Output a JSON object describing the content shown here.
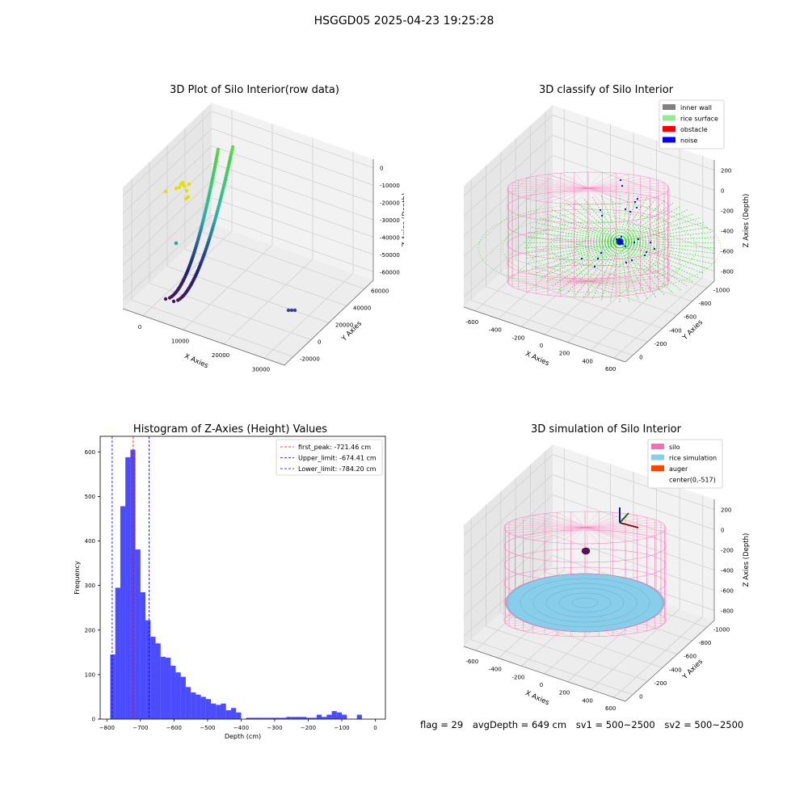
{
  "suptitle": "HSGGD05 2025-04-23 19:25:28",
  "footer": {
    "flag": "flag = 29",
    "avg": "avgDepth = 649 cm",
    "sv1": "sv1 = 500~2500",
    "sv2": "sv2 = 500~2500"
  },
  "colors": {
    "wall": "#808080",
    "rice": "#90ee90",
    "obstacle": "#ff0000",
    "noise": "#0000ff",
    "silo": "#ff69b4",
    "rice_sim": "#87ceeb",
    "auger": "#ff4500",
    "hist": "#0000ff"
  },
  "chart_data": [
    {
      "type": "scatter",
      "title": "3D Plot of Silo Interior(row data)",
      "xlabel": "X Axies",
      "ylabel": "Y Axies",
      "zlabel": "Z Axies (Depth)",
      "x_ticks": [
        "0",
        "10000",
        "20000",
        "30000"
      ],
      "y_ticks": [
        "-20000",
        "0",
        "20000",
        "40000",
        "60000"
      ],
      "z_ticks": [
        "0",
        "-10000",
        "-20000",
        "-30000",
        "-40000",
        "-50000",
        "-60000"
      ],
      "xlim": [
        -5000,
        35000
      ],
      "ylim": [
        -25000,
        65000
      ],
      "zlim": [
        -65000,
        0
      ]
    },
    {
      "type": "scatter",
      "title": "3D classify of Silo Interior",
      "xlabel": "X Axies",
      "ylabel": "Y Axies",
      "zlabel": "Z Axies (Depth)",
      "x_ticks": [
        "-600",
        "-400",
        "-200",
        "0",
        "200",
        "400",
        "600"
      ],
      "y_ticks": [
        "0",
        "-200",
        "-400",
        "-600",
        "-800",
        "-1000"
      ],
      "z_ticks": [
        "200",
        "0",
        "-200",
        "-400",
        "-600",
        "-800"
      ],
      "legend": [
        "inner wall",
        "rice surface",
        "obstacle",
        "noise"
      ],
      "legend_loc": "upper right"
    },
    {
      "type": "bar",
      "title": "Histogram of Z-Axies (Height) Values",
      "xlabel": "Depth (cm)",
      "ylabel": "Frequency",
      "xlim": [
        -820,
        30
      ],
      "ylim": [
        0,
        635
      ],
      "x_ticks": [
        -800,
        -700,
        -600,
        -500,
        -400,
        -300,
        -200,
        -100,
        0
      ],
      "y_ticks": [
        0,
        100,
        200,
        300,
        400,
        500,
        600
      ],
      "bin_start": -790,
      "bin_width": 15,
      "values": [
        145,
        295,
        478,
        588,
        605,
        381,
        285,
        222,
        185,
        170,
        140,
        138,
        120,
        105,
        95,
        72,
        60,
        55,
        50,
        45,
        35,
        32,
        35,
        20,
        25,
        15,
        0,
        3,
        3,
        3,
        3,
        3,
        3,
        3,
        3,
        5,
        5,
        5,
        5,
        3,
        3,
        10,
        5,
        10,
        18,
        15,
        10,
        0,
        0,
        10
      ],
      "lines": [
        {
          "label": "first_peak: -721.46 cm",
          "x": -721.46,
          "color": "#ff0000"
        },
        {
          "label": "Upper_limit: -674.41 cm",
          "x": -674.41,
          "color": "#0000ff"
        },
        {
          "label": "Lower_limit: -784.20 cm",
          "x": -784.2,
          "color": "#0000ff"
        }
      ],
      "legend_loc": "upper right"
    },
    {
      "type": "scatter",
      "title": "3D simulation of Silo Interior",
      "xlabel": "X Axies",
      "ylabel": "Y Axies",
      "zlabel": "Z Axies (Depth)",
      "x_ticks": [
        "-600",
        "-400",
        "-200",
        "0",
        "200",
        "400",
        "600"
      ],
      "y_ticks": [
        "0",
        "-200",
        "-400",
        "-600",
        "-800",
        "-1000"
      ],
      "z_ticks": [
        "200",
        "0",
        "-200",
        "-400",
        "-600",
        "-800"
      ],
      "legend": [
        "silo",
        "rice simulation",
        "auger",
        "center(0,-517)"
      ],
      "legend_loc": "upper right"
    }
  ]
}
